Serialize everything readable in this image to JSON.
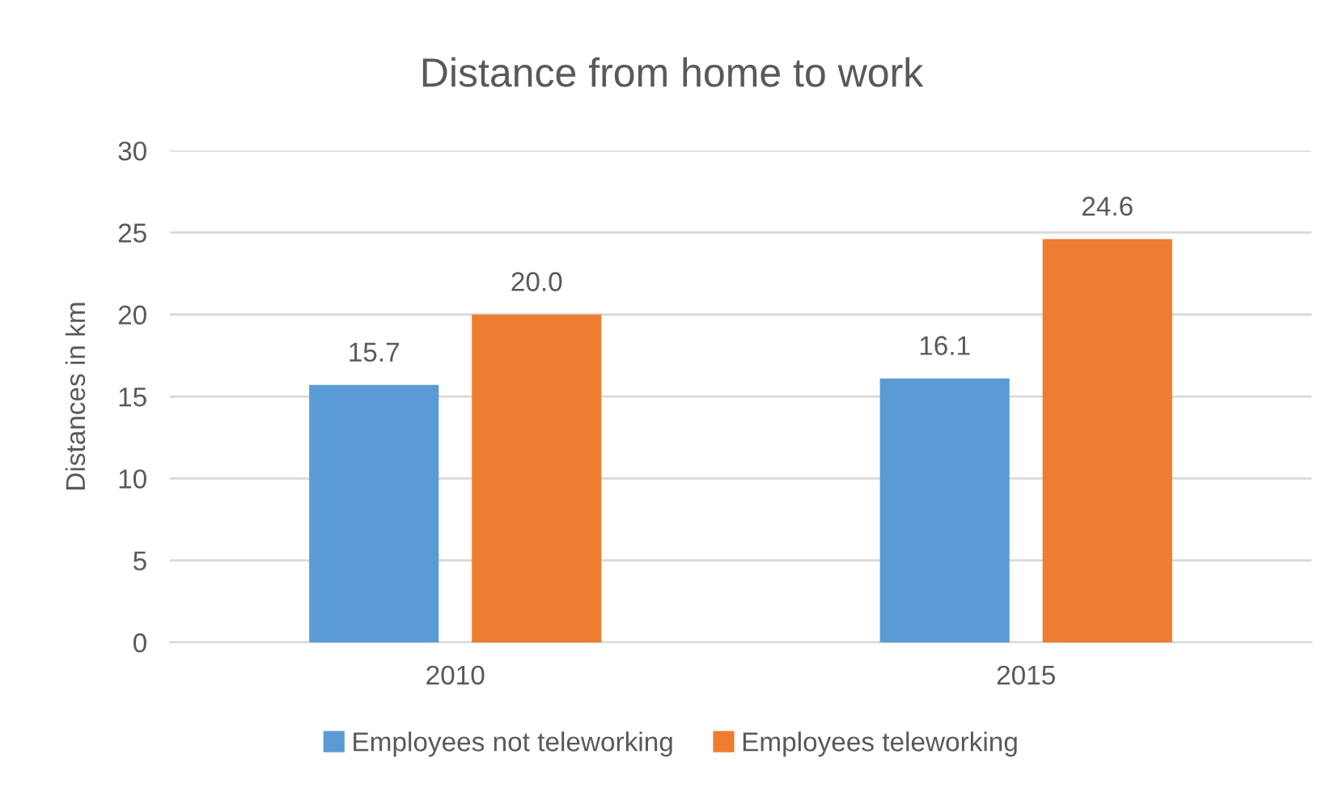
{
  "chart_data": {
    "type": "bar",
    "title": "Distance from home to work",
    "ylabel": "Distances in km",
    "categories": [
      "2010",
      "2015"
    ],
    "series": [
      {
        "name": "Employees not teleworking",
        "color": "#5b9bd5",
        "values": [
          15.7,
          16.1
        ],
        "value_labels": [
          "15.7",
          "16.1"
        ]
      },
      {
        "name": "Employees teleworking",
        "color": "#ed7d31",
        "values": [
          20.0,
          24.6
        ],
        "value_labels": [
          "20.0",
          "24.6"
        ]
      }
    ],
    "ylim": [
      0,
      30
    ],
    "yticks": [
      0,
      5,
      10,
      15,
      20,
      25,
      30
    ],
    "grid": "y",
    "legend": "bottom"
  }
}
